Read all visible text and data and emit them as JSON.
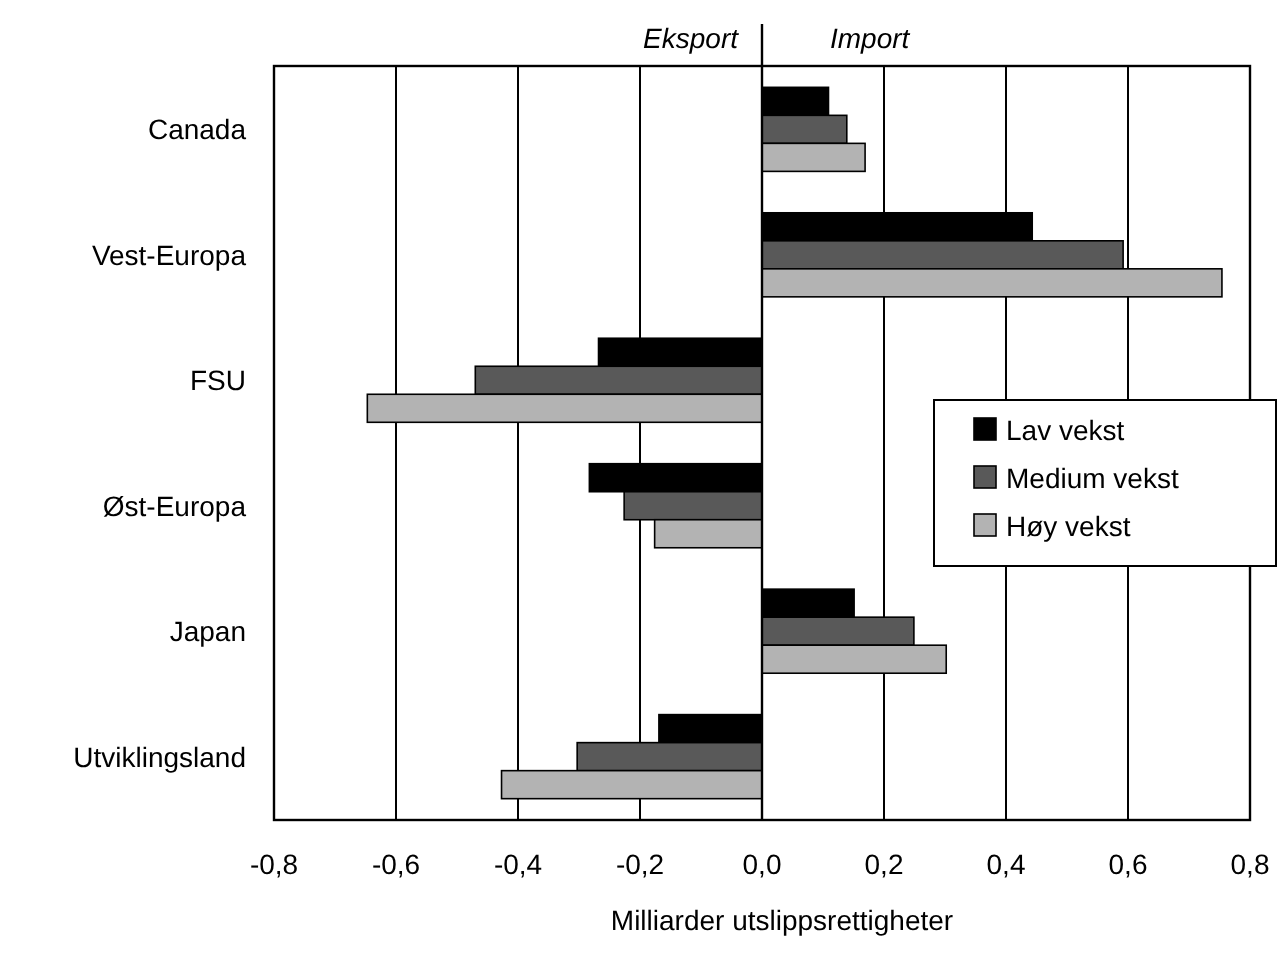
{
  "chart_data": {
    "type": "bar",
    "orientation": "horizontal",
    "categories": [
      "Canada",
      "Vest-Europa",
      "FSU",
      "Øst-Europa",
      "Japan",
      "Utviklingsland"
    ],
    "series": [
      {
        "name": "Lav vekst",
        "color": "#000000",
        "values": [
          0.109,
          0.443,
          -0.268,
          -0.283,
          0.151,
          -0.169
        ]
      },
      {
        "name": "Medium vekst",
        "color": "#595959",
        "values": [
          0.139,
          0.592,
          -0.47,
          -0.226,
          0.249,
          -0.303
        ]
      },
      {
        "name": "Høy vekst",
        "color": "#b3b3b3",
        "values": [
          0.169,
          0.754,
          -0.647,
          -0.176,
          0.302,
          -0.427
        ]
      }
    ],
    "xlim": [
      -0.8,
      0.8
    ],
    "xticks": [
      {
        "value": -0.8,
        "label": "-0,8"
      },
      {
        "value": -0.6,
        "label": "-0,6"
      },
      {
        "value": -0.4,
        "label": "-0,4"
      },
      {
        "value": -0.2,
        "label": "-0,2"
      },
      {
        "value": 0,
        "label": "0,0"
      },
      {
        "value": 0.2,
        "label": "0,2"
      },
      {
        "value": 0.4,
        "label": "0,4"
      },
      {
        "value": 0.6,
        "label": "0,6"
      },
      {
        "value": 0.8,
        "label": "0,8"
      }
    ],
    "xlabel": "Milliarder utslippsrettigheter",
    "annotations": [
      "Eksport",
      "Import"
    ],
    "grid": "x",
    "legend": "right"
  }
}
